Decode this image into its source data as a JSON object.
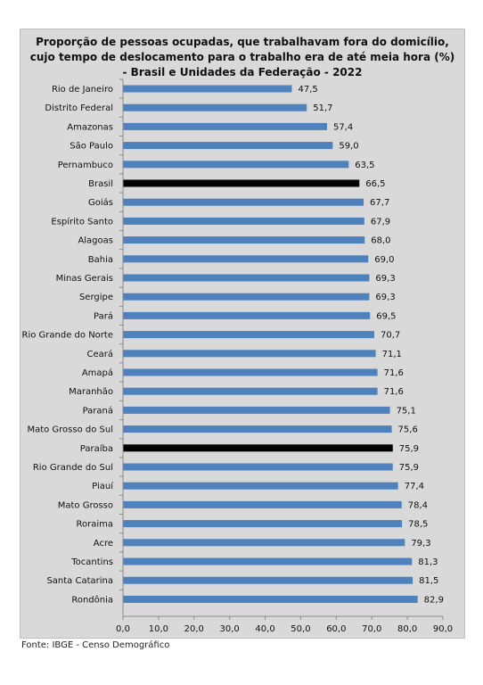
{
  "chart_data": {
    "type": "bar",
    "orientation": "horizontal",
    "title": [
      "Proporção de pessoas ocupadas, que trabalhavam fora do domicílio,",
      "cujo tempo de deslocamento para o trabalho era de até meia hora (%)",
      "- Brasil e Unidades da Federação - 2022"
    ],
    "categories": [
      "Rio de Janeiro",
      "Distrito Federal",
      "Amazonas",
      "São Paulo",
      "Pernambuco",
      "Brasil",
      "Goiás",
      "Espírito Santo",
      "Alagoas",
      "Bahia",
      "Minas Gerais",
      "Sergipe",
      "Pará",
      "Rio Grande do Norte",
      "Ceará",
      "Amapá",
      "Maranhão",
      "Paraná",
      "Mato Grosso do Sul",
      "Paraíba",
      "Rio Grande do Sul",
      "Piauí",
      "Mato Grosso",
      "Roraima",
      "Acre",
      "Tocantins",
      "Santa Catarina",
      "Rondônia"
    ],
    "values": [
      47.5,
      51.7,
      57.4,
      59.0,
      63.5,
      66.5,
      67.7,
      67.9,
      68.0,
      69.0,
      69.3,
      69.3,
      69.5,
      70.7,
      71.1,
      71.6,
      71.6,
      75.1,
      75.6,
      75.9,
      75.9,
      77.4,
      78.4,
      78.5,
      79.3,
      81.3,
      81.5,
      82.9
    ],
    "value_labels": [
      "47,5",
      "51,7",
      "57,4",
      "59,0",
      "63,5",
      "66,5",
      "67,7",
      "67,9",
      "68,0",
      "69,0",
      "69,3",
      "69,3",
      "69,5",
      "70,7",
      "71,1",
      "71,6",
      "71,6",
      "75,1",
      "75,6",
      "75,9",
      "75,9",
      "77,4",
      "78,4",
      "78,5",
      "79,3",
      "81,3",
      "81,5",
      "82,9"
    ],
    "highlighted": [
      "Brasil",
      "Paraíba"
    ],
    "xlim": [
      0,
      90
    ],
    "x_ticks": [
      "0,0",
      "10,0",
      "20,0",
      "30,0",
      "40,0",
      "50,0",
      "60,0",
      "70,0",
      "80,0",
      "90,0"
    ],
    "grid": false,
    "legend": "none",
    "colors": {
      "bar": "#4f81bd",
      "highlight": "#000000",
      "background": "#d9d9d9"
    }
  },
  "source": "Fonte: IBGE - Censo Demográfico"
}
